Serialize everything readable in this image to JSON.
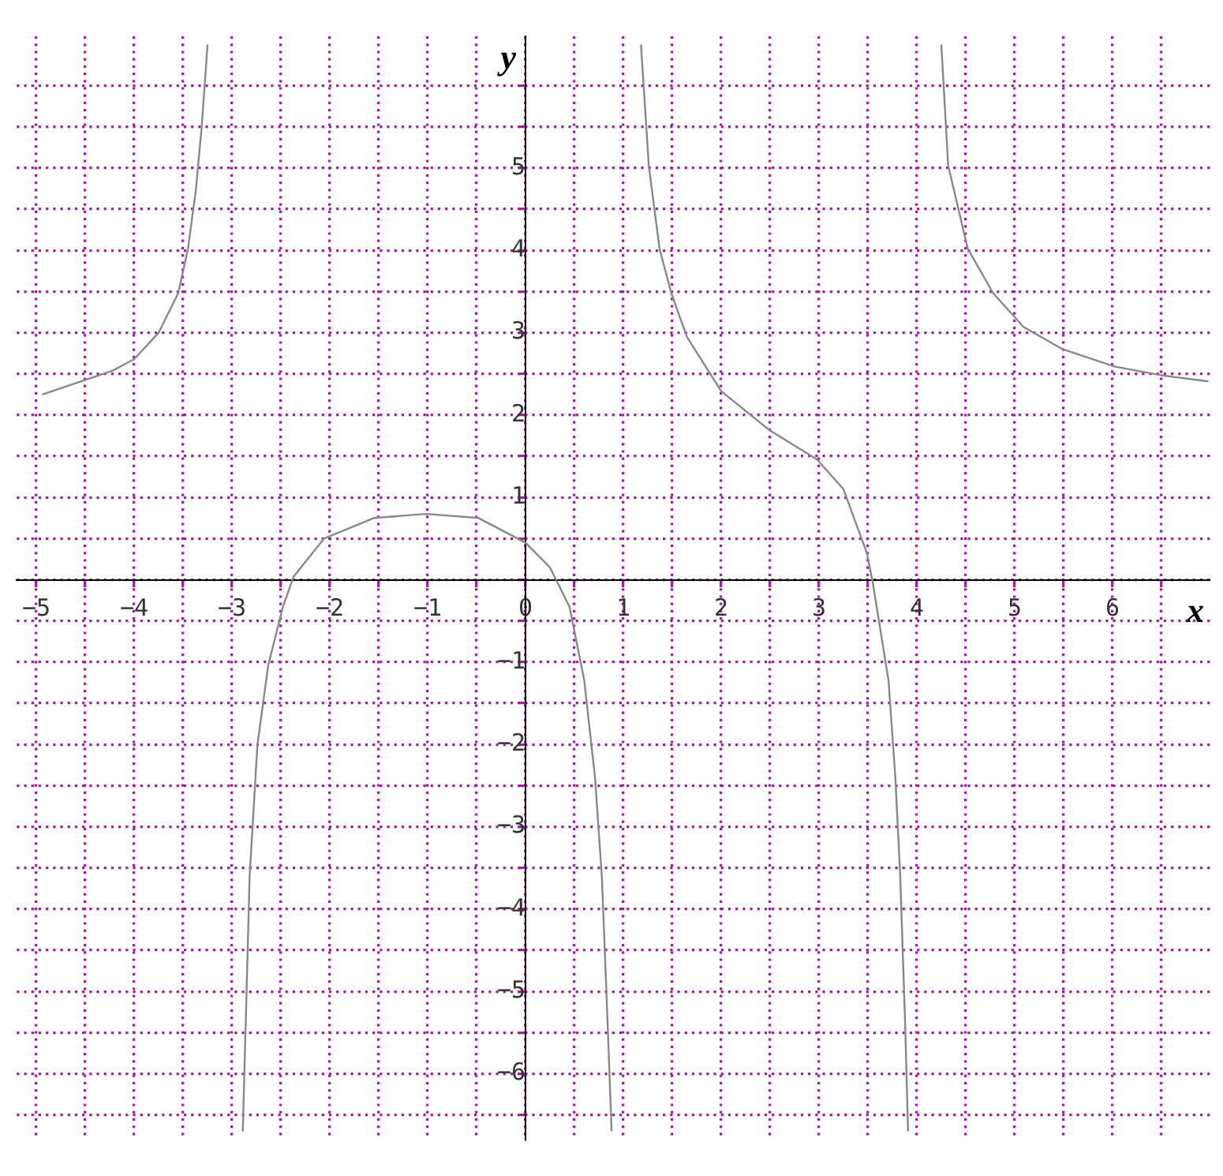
{
  "chart_data": {
    "type": "line",
    "xlabel": "x",
    "ylabel": "y",
    "xlim": [
      -5.2,
      7
    ],
    "ylim": [
      -6.8,
      6.6
    ],
    "xticks": [
      {
        "value": -5,
        "label": "−5"
      },
      {
        "value": -4.5,
        "label": null
      },
      {
        "value": -4,
        "label": "−4"
      },
      {
        "value": -3.5,
        "label": null
      },
      {
        "value": -3,
        "label": "−3"
      },
      {
        "value": -2.5,
        "label": null
      },
      {
        "value": -2,
        "label": "−2"
      },
      {
        "value": -1.5,
        "label": null
      },
      {
        "value": -1,
        "label": "−1"
      },
      {
        "value": -0.5,
        "label": null
      },
      0,
      {
        "value": 0.5,
        "label": null
      },
      1,
      {
        "value": 1.5,
        "label": null
      },
      2,
      {
        "value": 2.5,
        "label": null
      },
      3,
      {
        "value": 3.5,
        "label": null
      },
      4,
      {
        "value": 4.5,
        "label": null
      },
      5,
      {
        "value": 5.5,
        "label": null
      },
      6,
      {
        "value": 6.5,
        "label": null
      }
    ],
    "yticks": [
      {
        "value": -6.5,
        "label": null
      },
      {
        "value": -6,
        "label": "−6"
      },
      {
        "value": -5.5,
        "label": null
      },
      {
        "value": -5,
        "label": "−5"
      },
      {
        "value": -4.5,
        "label": null
      },
      {
        "value": -4,
        "label": "−4"
      },
      {
        "value": -3.5,
        "label": null
      },
      {
        "value": -3,
        "label": "−3"
      },
      {
        "value": -2.5,
        "label": null
      },
      {
        "value": -2,
        "label": "−2"
      },
      {
        "value": -1.5,
        "label": null
      },
      {
        "value": -1,
        "label": "−1"
      },
      {
        "value": -0.5,
        "label": null
      },
      {
        "value": 0,
        "label": null
      },
      {
        "value": 0.5,
        "label": null
      },
      1,
      {
        "value": 1.5,
        "label": null
      },
      2,
      {
        "value": 2.5,
        "label": null
      },
      3,
      {
        "value": 3.5,
        "label": null
      },
      4,
      {
        "value": 4.5,
        "label": null
      },
      5,
      {
        "value": 5.5,
        "label": null
      },
      {
        "value": 6,
        "label": null
      }
    ],
    "grid": true,
    "marker": "none",
    "line_style": "solid",
    "series": [
      {
        "color": "#888888",
        "x": [
          -4.94,
          -4.22,
          -4.0,
          -3.75,
          -3.55,
          -3.45,
          -3.37,
          -3.31,
          -3.25,
          -3.07,
          -2.89,
          -2.86,
          -2.82,
          -2.74,
          -2.63,
          -2.48,
          -2.37,
          -2.06,
          -1.55,
          -1.02,
          -0.48,
          0,
          0.25,
          0.45,
          0.6,
          0.71,
          0.78,
          0.83,
          0.88,
          1.03,
          1.18,
          1.26,
          1.37,
          1.49,
          1.65,
          2.0,
          2.49,
          2.98,
          3.25,
          3.49,
          3.55,
          3.71,
          3.78,
          3.83,
          3.88,
          3.91,
          4.08,
          4.25,
          4.32,
          4.52,
          4.78,
          5.09,
          5.49,
          6.02,
          6.52,
          6.98
        ],
        "values": [
          2.25,
          2.54,
          2.68,
          3.0,
          3.48,
          4.02,
          4.73,
          5.5,
          6.5,
          null,
          -6.7,
          -5.39,
          -3.6,
          -2.0,
          -1.04,
          -0.33,
          0.04,
          0.5,
          0.75,
          0.8,
          0.75,
          0.45,
          0.15,
          -0.33,
          -1.22,
          -2.4,
          -3.6,
          -5.1,
          -6.7,
          null,
          6.5,
          5.03,
          4.02,
          3.48,
          2.95,
          2.29,
          1.82,
          1.46,
          1.1,
          0.32,
          -0.04,
          -1.22,
          -2.4,
          -3.6,
          -5.39,
          -6.7,
          null,
          6.5,
          5.03,
          4.02,
          3.48,
          3.07,
          2.8,
          2.59,
          2.48,
          2.41
        ]
      }
    ]
  }
}
